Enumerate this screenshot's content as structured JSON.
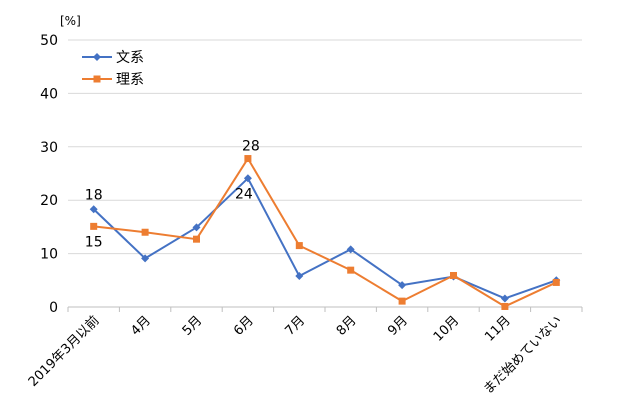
{
  "chart_data": {
    "type": "line",
    "unit_label": "[%]",
    "categories": [
      "2019年3月以前",
      "4月",
      "5月",
      "6月",
      "7月",
      "8月",
      "9月",
      "10月",
      "11月",
      "まだ始めていない"
    ],
    "ylim": [
      0,
      50
    ],
    "yticks": [
      "0",
      "10",
      "20",
      "30",
      "40",
      "50"
    ],
    "grid": true,
    "legend_position": "top-left",
    "series": [
      {
        "name": "文系",
        "color": "#4472C4",
        "marker": "diamond",
        "values": [
          18.3,
          9.1,
          14.9,
          24.1,
          5.8,
          10.8,
          4.1,
          5.7,
          1.6,
          5.0
        ],
        "labels": [
          {
            "index": 0,
            "text": "18"
          },
          {
            "index": 3,
            "text": "24"
          }
        ]
      },
      {
        "name": "理系",
        "color": "#ED7D31",
        "marker": "square",
        "values": [
          15.1,
          14.0,
          12.7,
          27.8,
          11.5,
          6.9,
          1.1,
          5.9,
          0.1,
          4.6
        ],
        "labels": [
          {
            "index": 0,
            "text": "15"
          },
          {
            "index": 3,
            "text": "28"
          }
        ]
      }
    ]
  }
}
